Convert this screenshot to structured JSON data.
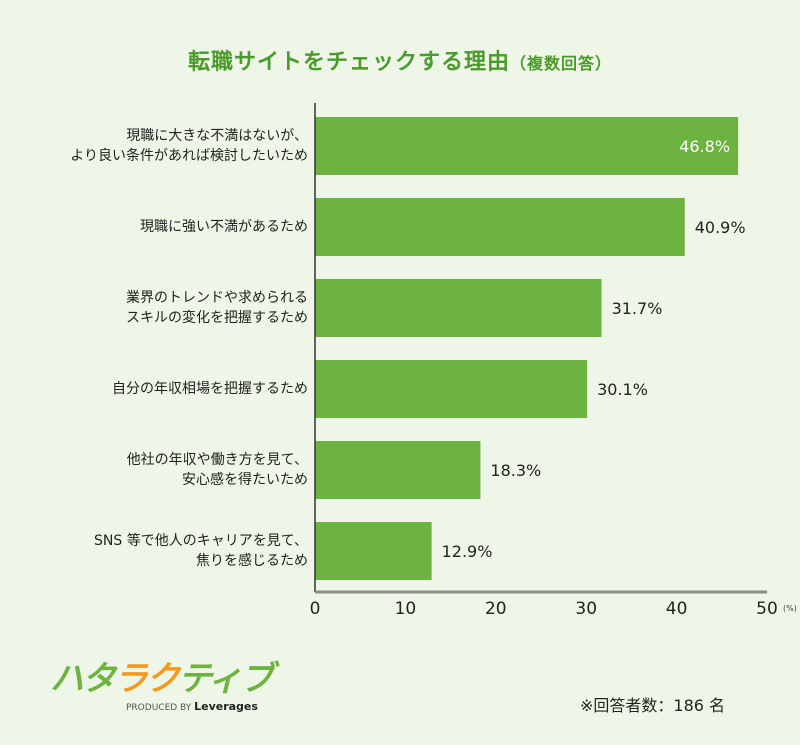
{
  "chart_data": {
    "type": "bar",
    "orientation": "horizontal",
    "title": "転職サイトをチェックする理由",
    "subtitle": "（複数回答）",
    "categories": [
      [
        "現職に大きな不満はないが、",
        "より良い条件があれば検討したいため"
      ],
      [
        "現職に強い不満があるため"
      ],
      [
        "業界のトレンドや求められる",
        "スキルの変化を把握するため"
      ],
      [
        "自分の年収相場を把握するため"
      ],
      [
        "他社の年収や働き方を見て、",
        "安心感を得たいため"
      ],
      [
        "SNS 等で他人のキャリアを見て、",
        "焦りを感じるため"
      ]
    ],
    "values": [
      46.8,
      40.9,
      31.7,
      30.1,
      18.3,
      12.9
    ],
    "value_labels": [
      "46.8%",
      "40.9%",
      "31.7%",
      "30.1%",
      "18.3%",
      "12.9%"
    ],
    "xlim": [
      0,
      50
    ],
    "xticks": [
      "0",
      "10",
      "20",
      "30",
      "40",
      "50"
    ],
    "x_unit": "(%)",
    "grid": false,
    "colors": {
      "bar": "#6db33f",
      "title": "#4b9a2c",
      "background": "#eef7e7"
    }
  },
  "footer": {
    "note": "※回答者数：186 名",
    "logo_text": "ハタラクティブ",
    "logo_byline": "PRODUCED BY",
    "logo_brand": "Leverages"
  }
}
